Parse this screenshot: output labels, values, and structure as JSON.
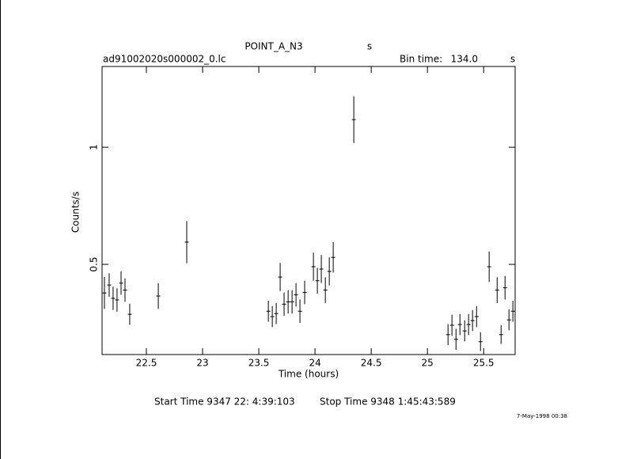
{
  "chart_data": {
    "type": "errorbar",
    "title": "POINT_A_N3",
    "title_unit": "s",
    "file_name": "ad91002020s000002_0.lc",
    "bin_time_label": "Bin time:",
    "bin_time": "134.0",
    "bin_time_unit": "s",
    "x_label": "Time (hours)",
    "y_label": "Counts/s",
    "start_time": "Start Time  9347 22: 4:39:103",
    "stop_time": "Stop Time  9348  1:45:43:589",
    "footer_date": "7-May-1998 00:38",
    "color": "#000000",
    "xlim": [
      22.106,
      25.78
    ],
    "ylim": [
      0.115,
      1.345
    ],
    "xticks": [
      22.5,
      23,
      23.5,
      24,
      24.5,
      25,
      25.5
    ],
    "yticks": [
      0.5,
      1
    ],
    "x": [
      22.127,
      22.169,
      22.204,
      22.239,
      22.275,
      22.31,
      22.352,
      22.606,
      22.859,
      23.585,
      23.62,
      23.655,
      23.69,
      23.725,
      23.761,
      23.796,
      23.831,
      23.866,
      23.908,
      23.986,
      24.021,
      24.056,
      24.092,
      24.127,
      24.162,
      24.345,
      25.183,
      25.218,
      25.254,
      25.289,
      25.331,
      25.366,
      25.401,
      25.437,
      25.472,
      25.549,
      25.62,
      25.655,
      25.69,
      25.725,
      25.76
    ],
    "values": [
      0.378,
      0.412,
      0.355,
      0.348,
      0.42,
      0.39,
      0.287,
      0.365,
      0.595,
      0.3,
      0.277,
      0.29,
      0.446,
      0.33,
      0.34,
      0.34,
      0.37,
      0.3,
      0.38,
      0.49,
      0.43,
      0.48,
      0.39,
      0.47,
      0.53,
      1.118,
      0.2,
      0.24,
      0.18,
      0.243,
      0.216,
      0.243,
      0.26,
      0.277,
      0.17,
      0.49,
      0.39,
      0.2,
      0.4,
      0.263,
      0.3
    ],
    "errors": [
      0.068,
      0.05,
      0.05,
      0.05,
      0.05,
      0.05,
      0.045,
      0.055,
      0.09,
      0.045,
      0.045,
      0.045,
      0.06,
      0.05,
      0.05,
      0.05,
      0.05,
      0.05,
      0.05,
      0.06,
      0.055,
      0.06,
      0.055,
      0.06,
      0.065,
      0.1,
      0.045,
      0.045,
      0.045,
      0.045,
      0.045,
      0.045,
      0.045,
      0.045,
      0.04,
      0.065,
      0.055,
      0.04,
      0.05,
      0.045,
      0.045
    ]
  }
}
